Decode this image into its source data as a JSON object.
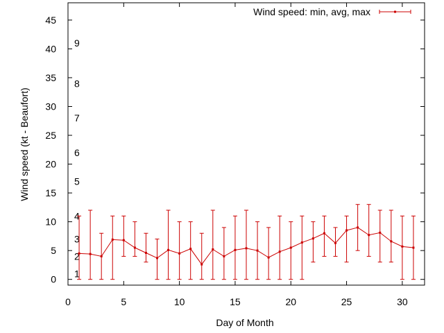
{
  "chart_data": {
    "type": "line",
    "title": "",
    "xlabel": "Day of Month",
    "ylabel": "Wind speed (kt - Beaufort)",
    "xlim": [
      0,
      32
    ],
    "ylim": [
      -1,
      48
    ],
    "x_ticks": [
      0,
      5,
      10,
      15,
      20,
      25,
      30
    ],
    "y_ticks": [
      0,
      5,
      10,
      15,
      20,
      25,
      30,
      35,
      40,
      45
    ],
    "grid": false,
    "legend_position": "top-right",
    "beaufort_labels": [
      {
        "label": "1",
        "y": 1
      },
      {
        "label": "2",
        "y": 4
      },
      {
        "label": "3",
        "y": 7
      },
      {
        "label": "4",
        "y": 11
      },
      {
        "label": "5",
        "y": 17
      },
      {
        "label": "6",
        "y": 22
      },
      {
        "label": "7",
        "y": 28
      },
      {
        "label": "8",
        "y": 34
      },
      {
        "label": "9",
        "y": 41
      }
    ],
    "series": [
      {
        "name": "Wind speed: min, avg, max",
        "color": "#cc0000",
        "x": [
          1,
          2,
          3,
          4,
          5,
          6,
          7,
          8,
          9,
          10,
          11,
          12,
          13,
          14,
          15,
          16,
          17,
          18,
          19,
          20,
          21,
          22,
          23,
          24,
          25,
          26,
          27,
          28,
          29,
          30,
          31
        ],
        "avg": [
          4.5,
          4.4,
          4.0,
          6.9,
          6.8,
          5.5,
          4.6,
          3.7,
          5.1,
          4.5,
          5.3,
          2.6,
          5.2,
          4.0,
          5.1,
          5.4,
          5.0,
          3.8,
          4.8,
          5.5,
          6.4,
          7.1,
          8.0,
          6.3,
          8.5,
          9.0,
          7.7,
          8.1,
          6.6,
          5.7,
          5.5
        ],
        "min": [
          0,
          0,
          0,
          0,
          4,
          4,
          3,
          0,
          0,
          0,
          0,
          0,
          0,
          0,
          0,
          0,
          0,
          0,
          0,
          0,
          0,
          3,
          4,
          4,
          3,
          5,
          4,
          3,
          3,
          0,
          0
        ],
        "max": [
          11,
          12,
          8,
          11,
          11,
          10,
          8,
          7,
          12,
          10,
          10,
          8,
          12,
          9,
          11,
          12,
          10,
          9,
          11,
          10,
          11,
          10,
          11,
          9,
          11,
          13,
          13,
          12,
          12,
          11,
          11
        ]
      }
    ]
  }
}
